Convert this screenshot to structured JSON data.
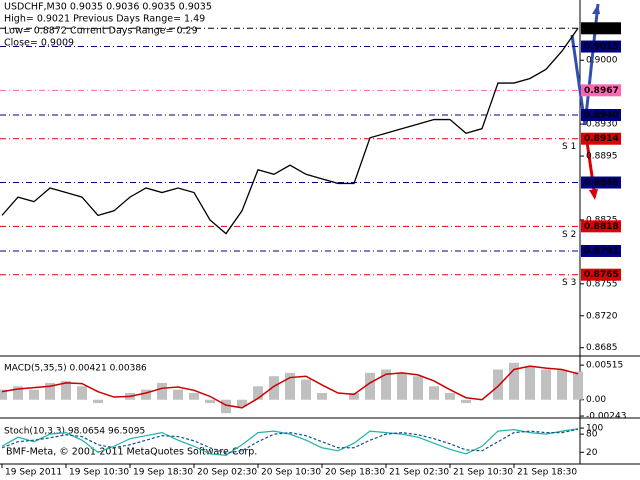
{
  "chart_data": [
    {
      "type": "line",
      "header": [
        "USDCHF,M30  0.9035 0.9036 0.9035 0.9035",
        "High= 0.9021    Previous Days Range= 1.49",
        "Low= 0.8872    Current Days Range= 0.29",
        "Close= 0.9009"
      ],
      "categories": [
        "19 Sep 2011",
        null,
        null,
        null,
        "19 Sep 10:30",
        null,
        null,
        null,
        "19 Sep 18:30",
        null,
        null,
        null,
        "20 Sep 02:30",
        null,
        null,
        null,
        "20 Sep 10:30",
        null,
        null,
        null,
        "20 Sep 18:30",
        null,
        null,
        null,
        "21 Sep 02:30",
        null,
        null,
        null,
        "21 Sep 10:30",
        null,
        null,
        null,
        "21 Sep 18:30",
        null,
        null,
        null,
        null
      ],
      "values": [
        0.883,
        0.885,
        0.8845,
        0.886,
        0.8855,
        0.885,
        0.883,
        0.8835,
        0.885,
        0.886,
        0.8855,
        0.886,
        0.8855,
        0.8825,
        0.881,
        0.8835,
        0.888,
        0.8875,
        0.8885,
        0.8875,
        0.887,
        0.8865,
        0.8865,
        0.8915,
        0.892,
        0.8925,
        0.893,
        0.8935,
        0.8935,
        0.892,
        0.8925,
        0.8975,
        0.8975,
        0.898,
        0.899,
        0.901,
        0.9035
      ],
      "color": "#000000",
      "ylim": [
        0.8677,
        0.9066
      ],
      "yticks": [
        {
          "value": 0.9,
          "label": "0.9000"
        },
        {
          "value": 0.893,
          "label": "0.8930"
        },
        0.8895,
        0.8825,
        0.8755,
        {
          "value": 0.872,
          "label": "0.8720"
        },
        0.8685
      ],
      "levels": [
        {
          "value": 0.9035,
          "label": "0.9035",
          "color": "#000000"
        },
        {
          "value": 0.9015,
          "label": "0.9015",
          "color": "#000080"
        },
        {
          "value": 0.8967,
          "label": "0.8967",
          "color": "#ff66b3"
        },
        {
          "value": 0.894,
          "label": "0.8940",
          "color": "#000080"
        },
        {
          "value": 0.8914,
          "label": "0.8914",
          "color": "#dd0000",
          "note": "S 1"
        },
        {
          "value": 0.8866,
          "label": "0.8866",
          "color": "#000080"
        },
        {
          "value": 0.8818,
          "label": "0.8818",
          "color": "#dd0000",
          "note": "S 2"
        },
        {
          "value": 0.8791,
          "label": "0.8791",
          "color": "#000080"
        },
        {
          "value": 0.8765,
          "label": "0.8765",
          "color": "#dd0000",
          "note": "S 3"
        }
      ],
      "note_color": "#e0a020"
    },
    {
      "type": "macd",
      "title": "MACD(5,35,5) 0.00421 0.00386",
      "series": [
        {
          "color": "#c0c0c0",
          "values": [
            0.0015,
            0.002,
            0.0015,
            0.0025,
            0.0028,
            0.002,
            -0.0005,
            0.0,
            0.001,
            0.0015,
            0.0025,
            0.0015,
            0.001,
            -0.0005,
            -0.002,
            -0.001,
            0.002,
            0.0035,
            0.004,
            0.003,
            0.001,
            0.0,
            0.001,
            0.004,
            0.0045,
            0.004,
            0.0035,
            0.002,
            0.001,
            -0.0005,
            0.0,
            0.0045,
            0.0055,
            0.005,
            0.0045,
            0.0045,
            0.0042
          ]
        },
        {
          "color": "#cc0000",
          "values": [
            0.0012,
            0.0016,
            0.0018,
            0.002,
            0.0025,
            0.0024,
            0.0012,
            0.0004,
            0.0005,
            0.001,
            0.0017,
            0.0019,
            0.0014,
            0.0005,
            -0.0008,
            -0.0012,
            0.0002,
            0.002,
            0.0033,
            0.0035,
            0.0022,
            0.001,
            0.0008,
            0.0025,
            0.0038,
            0.004,
            0.0037,
            0.0028,
            0.0015,
            0.0003,
            0.0,
            0.002,
            0.0045,
            0.005,
            0.0047,
            0.0045,
            0.00386
          ]
        }
      ],
      "ylim": [
        -0.00257,
        0.00636
      ],
      "yticks": [
        0.00515,
        {
          "value": 0,
          "label": "0.00"
        },
        -0.00243
      ]
    },
    {
      "type": "line",
      "title": "Stoch(10,3,3) 98.0654 96.5095",
      "series": [
        {
          "color": "#20b2aa",
          "values": [
            40,
            70,
            55,
            80,
            85,
            60,
            20,
            40,
            65,
            75,
            85,
            60,
            40,
            15,
            10,
            45,
            85,
            90,
            80,
            60,
            35,
            25,
            50,
            90,
            85,
            80,
            70,
            50,
            30,
            15,
            40,
            90,
            95,
            85,
            80,
            90,
            98
          ]
        },
        {
          "color": "#10508a",
          "values": [
            35,
            55,
            60,
            68,
            78,
            72,
            45,
            35,
            45,
            60,
            75,
            72,
            58,
            35,
            18,
            25,
            55,
            80,
            85,
            75,
            55,
            35,
            35,
            60,
            80,
            85,
            78,
            65,
            48,
            28,
            25,
            55,
            85,
            90,
            85,
            85,
            96
          ]
        }
      ],
      "ylim": [
        -12,
        130
      ],
      "yticks": [
        100,
        80,
        20
      ]
    }
  ],
  "footer": "BMF-Meta, © 2001-2011 MetaQuotes Software Corp."
}
